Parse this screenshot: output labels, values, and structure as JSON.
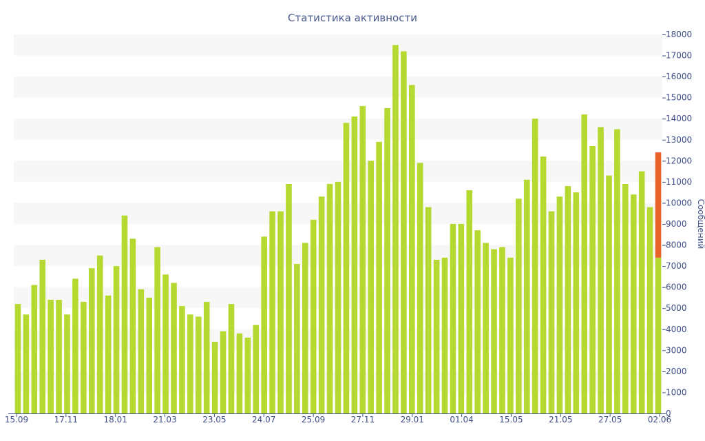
{
  "chart_data": {
    "type": "bar",
    "title": "Статистика активности",
    "ylabel": "Сообщений",
    "xlabel": "",
    "ylim": [
      0,
      18000
    ],
    "y_ticks": [
      0,
      1000,
      2000,
      3000,
      4000,
      5000,
      6000,
      7000,
      8000,
      9000,
      10000,
      11000,
      12000,
      13000,
      14000,
      15000,
      16000,
      17000,
      18000
    ],
    "x_tick_labels": [
      "15.09",
      "17.11",
      "18.01",
      "21.03",
      "23.05",
      "24.07",
      "25.09",
      "27.11",
      "29.01",
      "01.04",
      "15.05",
      "21.05",
      "27.05",
      "02.06"
    ],
    "y_axis_position": "right",
    "grid": "alternating horizontal bands",
    "legend": "none",
    "colors": {
      "bar": "#b5d930",
      "highlight": "#e8622a",
      "band": "#f7f7f7",
      "text": "#3d4d86"
    },
    "values": [
      5200,
      4700,
      6100,
      7300,
      5400,
      5400,
      4700,
      6400,
      5300,
      6900,
      7500,
      5600,
      7000,
      9400,
      8300,
      5900,
      5500,
      7900,
      6600,
      6200,
      5100,
      4700,
      4600,
      5300,
      3400,
      3900,
      5200,
      3800,
      3600,
      4200,
      8400,
      9600,
      9600,
      10900,
      7100,
      8100,
      9200,
      10300,
      10900,
      11000,
      13800,
      14100,
      14600,
      12000,
      12900,
      14500,
      17500,
      17200,
      15600,
      11900,
      9800,
      7300,
      7400,
      9000,
      9000,
      10600,
      8700,
      8100,
      7800,
      7900,
      7400,
      10200,
      11100,
      14000,
      12200,
      9600,
      10300,
      10800,
      10500,
      14200,
      12700,
      13600,
      11300,
      13500,
      10900,
      10400,
      11500,
      9800,
      12400
    ],
    "last_bar_highlight_from": 7400
  }
}
